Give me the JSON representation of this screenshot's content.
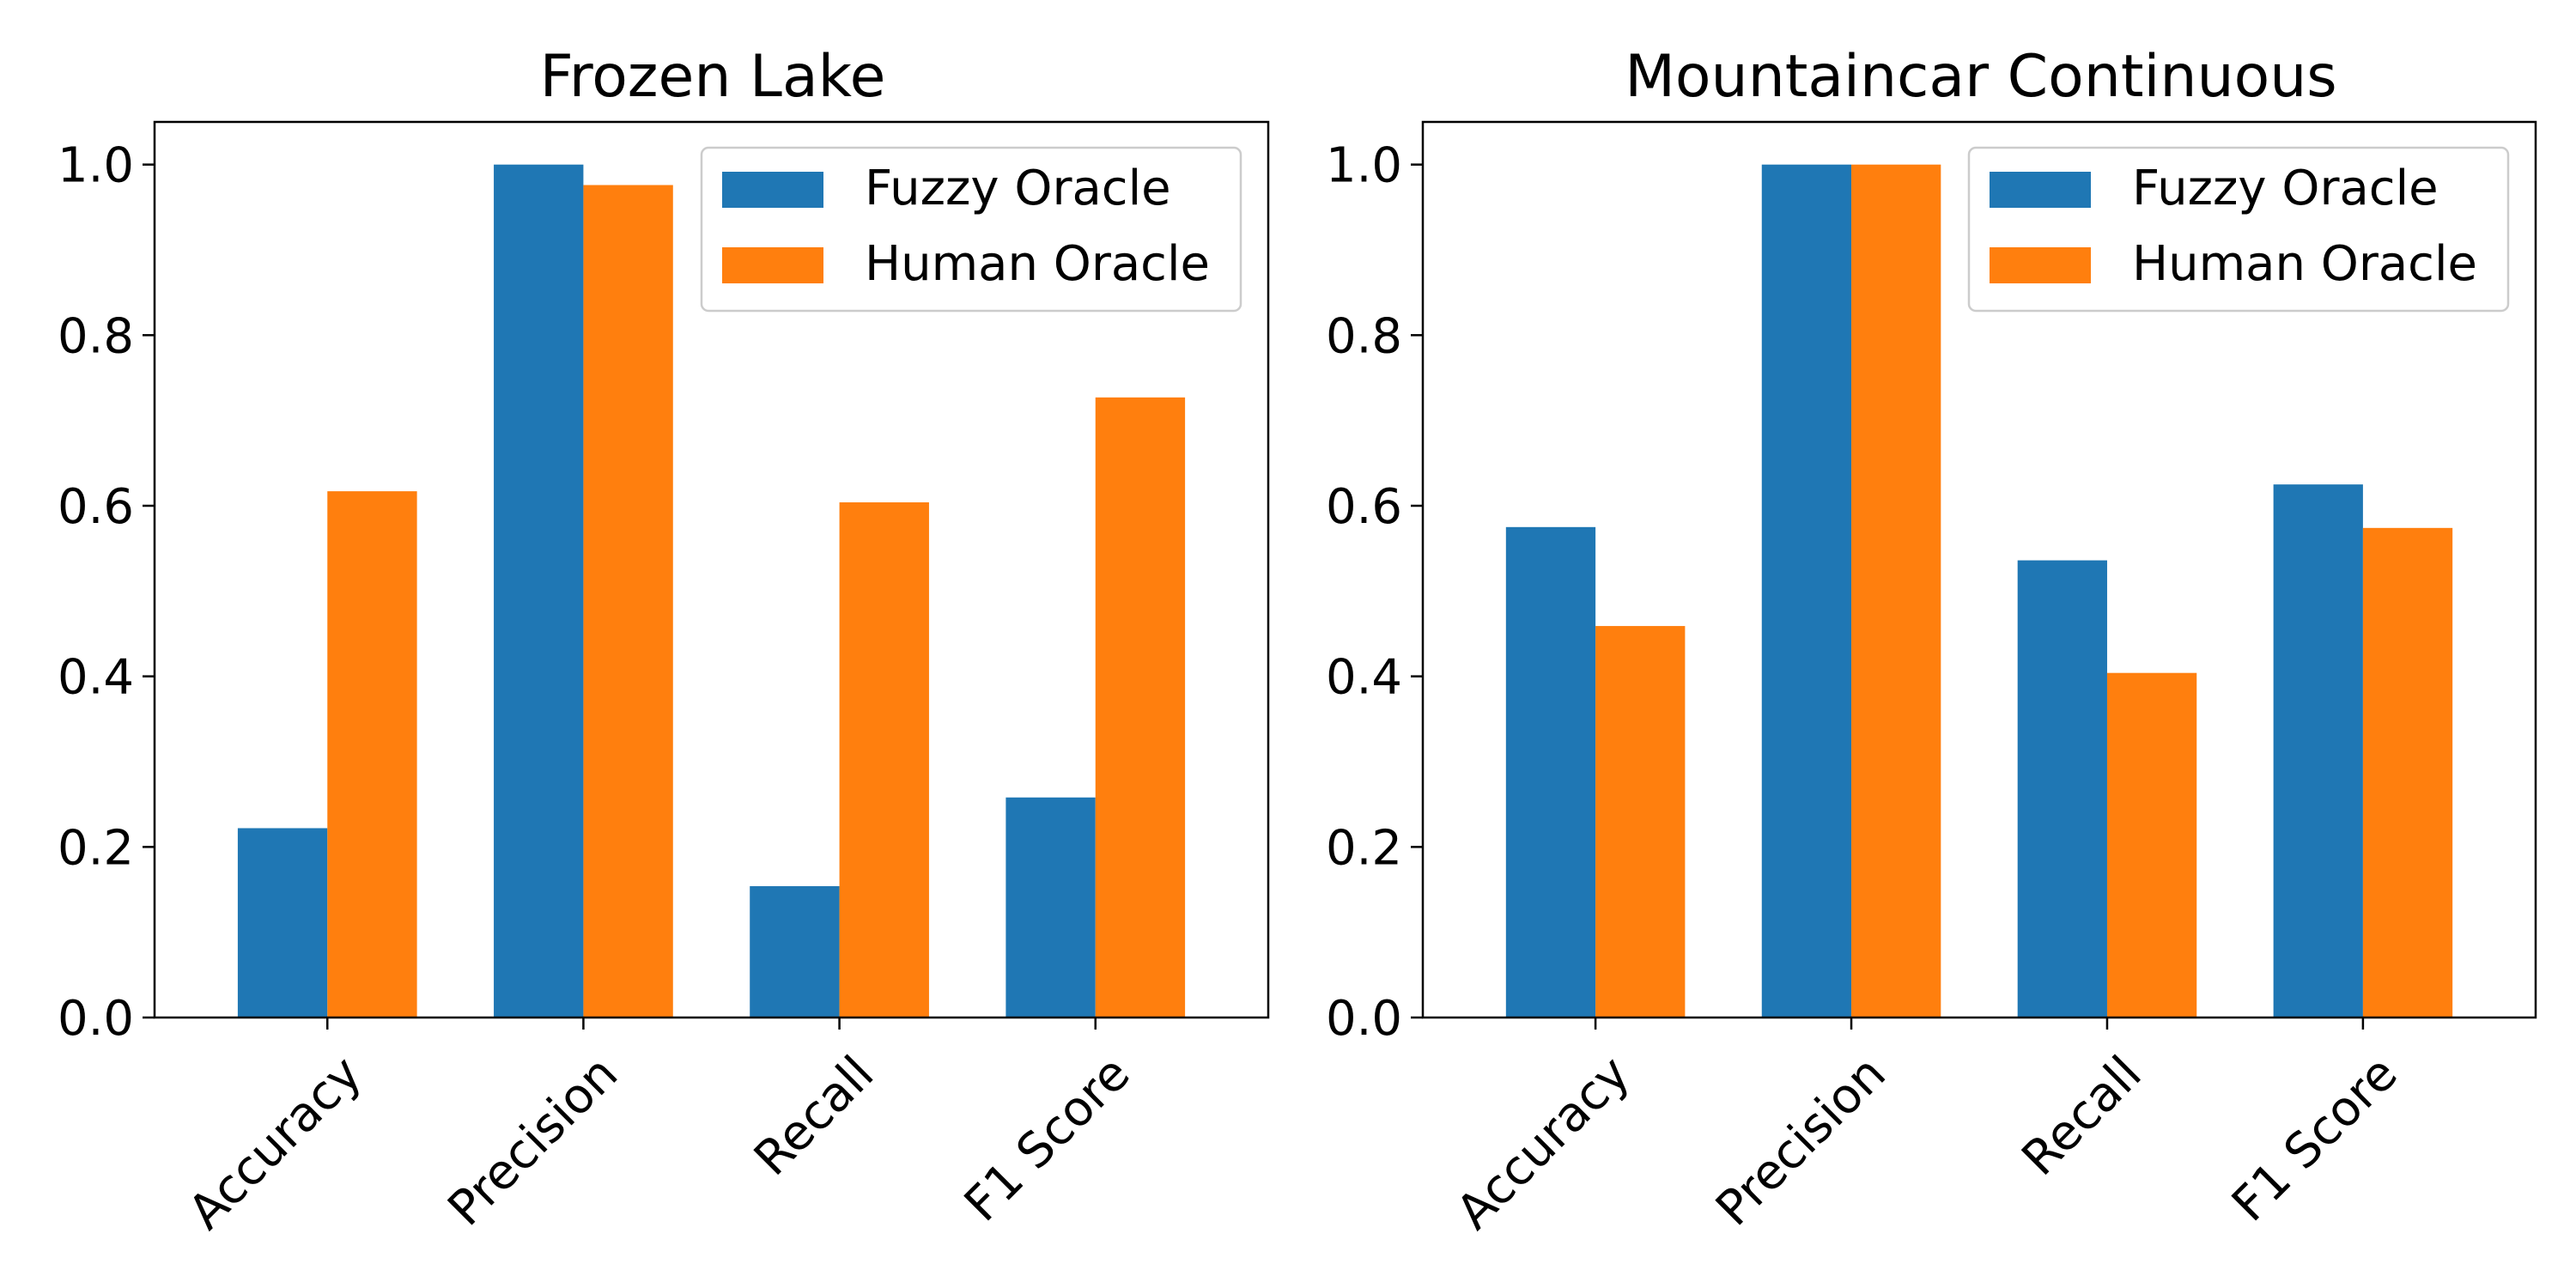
{
  "colors": {
    "fuzzy": "#1f77b4",
    "human": "#ff7f0e",
    "axis": "#000000",
    "legend_border": "#cccccc"
  },
  "chart_data": [
    {
      "type": "bar",
      "title": "Frozen Lake",
      "xlabel": "",
      "ylabel": "",
      "ylim": [
        0,
        1.05
      ],
      "yticks": [
        "0.0",
        "0.2",
        "0.4",
        "0.6",
        "0.8",
        "1.0"
      ],
      "categories": [
        "Accuracy",
        "Precision",
        "Recall",
        "F1 Score"
      ],
      "legend_position": "upper right",
      "grid": false,
      "series": [
        {
          "name": "Fuzzy Oracle",
          "color_key": "fuzzy",
          "values": [
            0.222,
            1.0,
            0.154,
            0.258
          ]
        },
        {
          "name": "Human Oracle",
          "color_key": "human",
          "values": [
            0.617,
            0.976,
            0.604,
            0.727
          ]
        }
      ]
    },
    {
      "type": "bar",
      "title": "Mountaincar Continuous",
      "xlabel": "",
      "ylabel": "",
      "ylim": [
        0,
        1.05
      ],
      "yticks": [
        "0.0",
        "0.2",
        "0.4",
        "0.6",
        "0.8",
        "1.0"
      ],
      "categories": [
        "Accuracy",
        "Precision",
        "Recall",
        "F1 Score"
      ],
      "legend_position": "upper right",
      "grid": false,
      "series": [
        {
          "name": "Fuzzy Oracle",
          "color_key": "fuzzy",
          "values": [
            0.575,
            1.0,
            0.536,
            0.625
          ]
        },
        {
          "name": "Human Oracle",
          "color_key": "human",
          "values": [
            0.459,
            1.0,
            0.404,
            0.574
          ]
        }
      ]
    }
  ]
}
